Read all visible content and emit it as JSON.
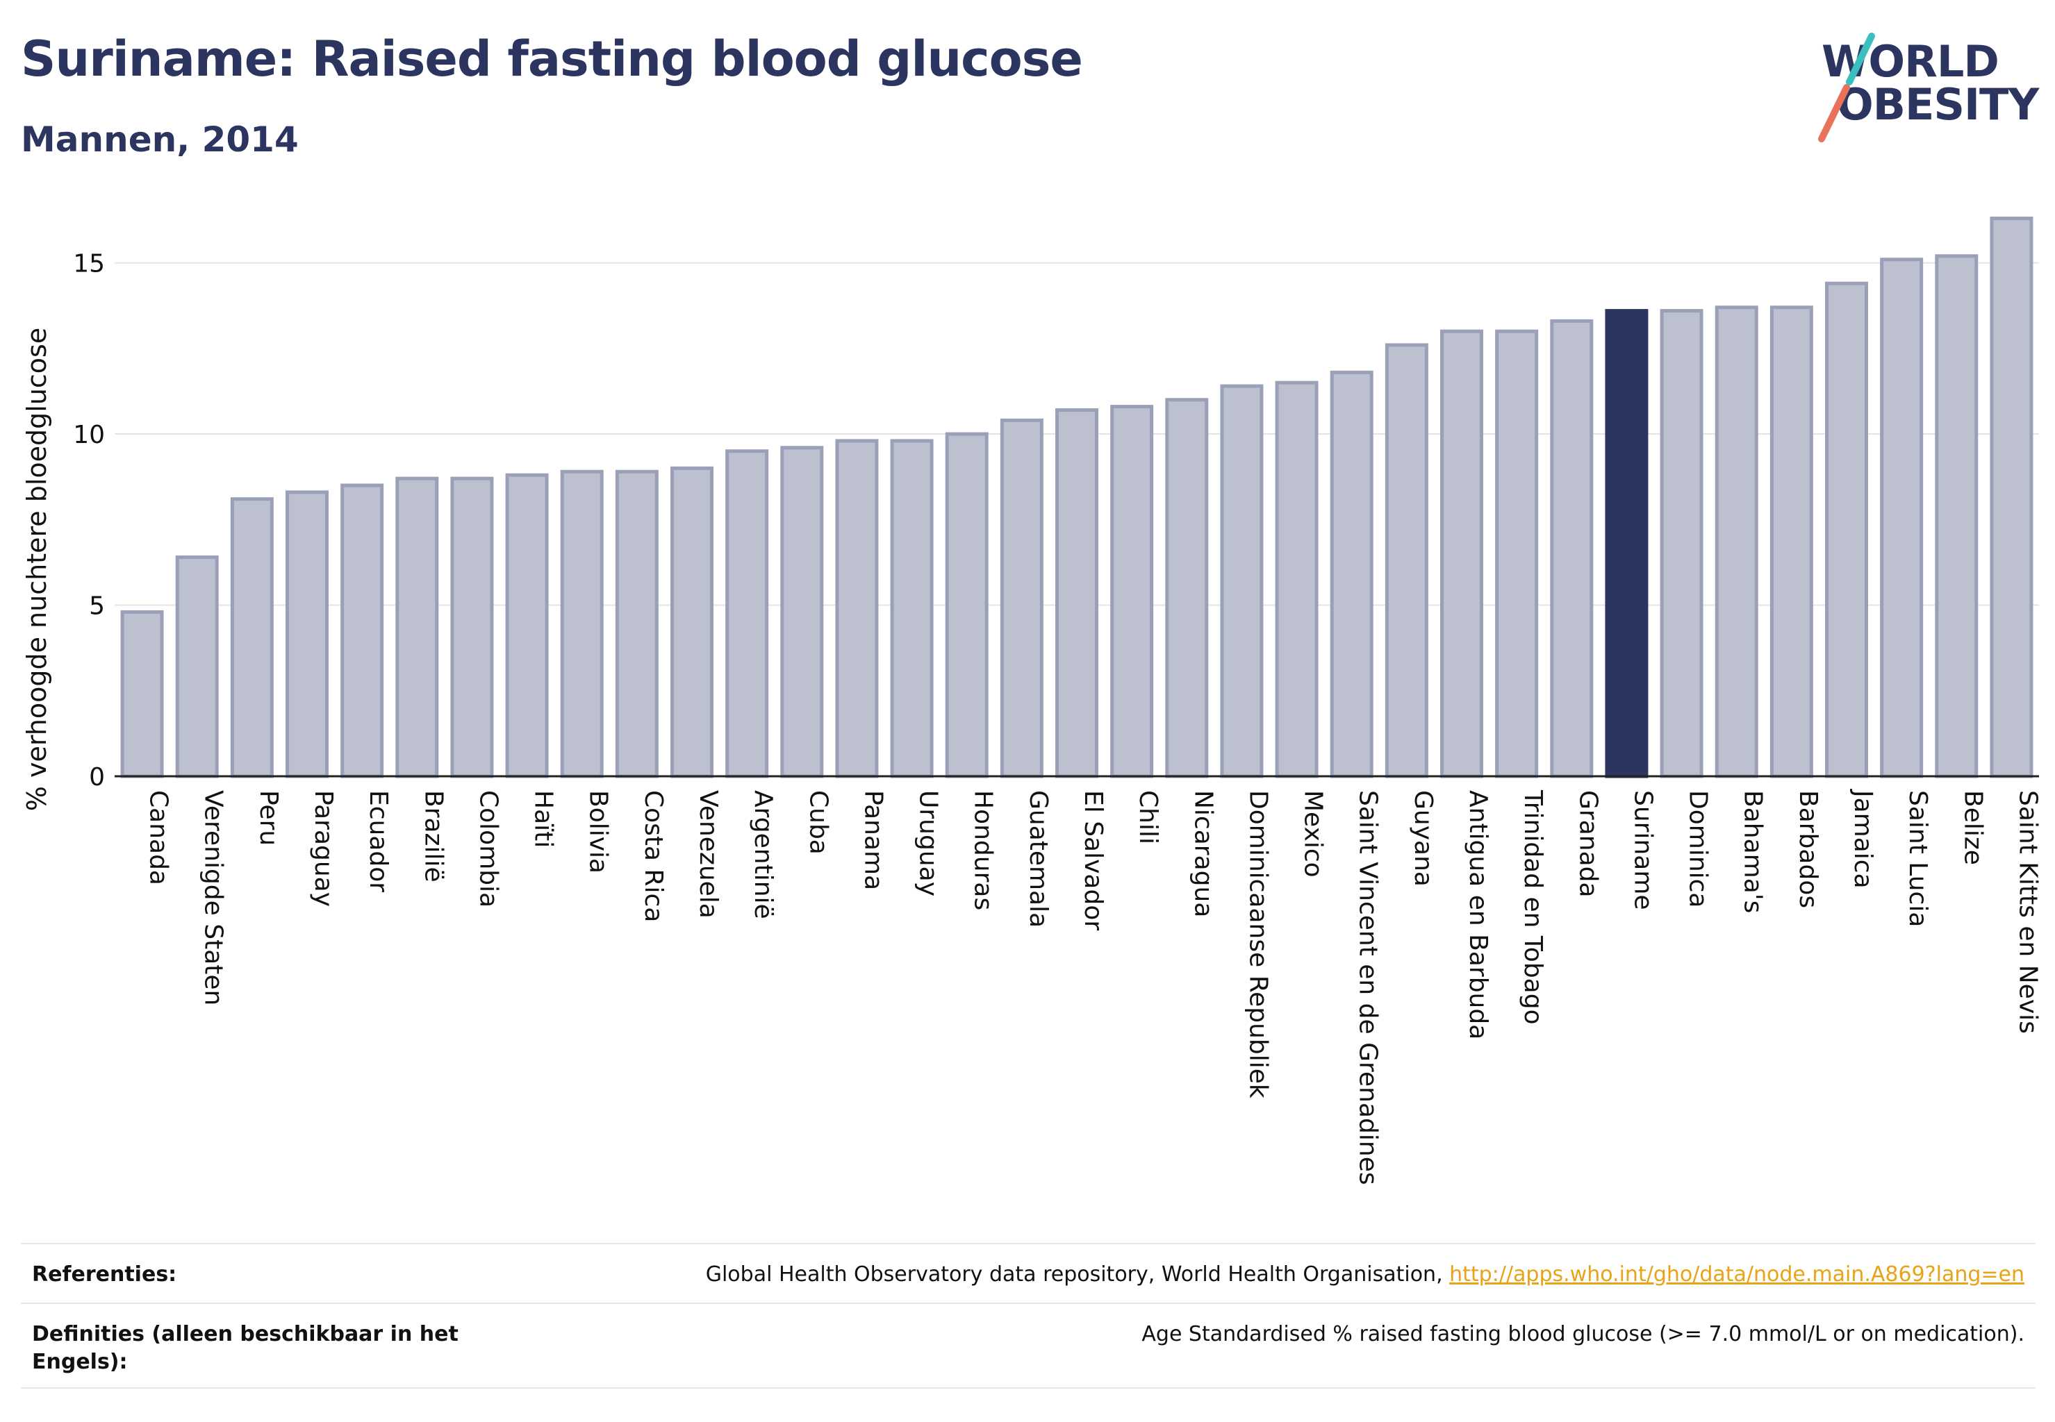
{
  "title": "Suriname: Raised fasting blood glucose",
  "subtitle": "Mannen, 2014",
  "logo": {
    "line1": "WORLD",
    "line2": "OBESITY"
  },
  "colors": {
    "bar": "#bcc0cf",
    "bar_stroke": "#9aa0b8",
    "highlight": "#2b3560",
    "text": "#2b3560",
    "link": "#e8a317"
  },
  "chart_data": {
    "type": "bar",
    "title": "Suriname: Raised fasting blood glucose",
    "subtitle": "Mannen, 2014",
    "xlabel": "",
    "ylabel": "% verhoogde nuchtere bloedglucose",
    "ylim": [
      0,
      17
    ],
    "yticks": [
      0,
      5,
      10,
      15
    ],
    "grid": true,
    "highlight": "Suriname",
    "categories": [
      "Canada",
      "Verenigde Staten",
      "Peru",
      "Paraguay",
      "Ecuador",
      "Brazilië",
      "Colombia",
      "Haïti",
      "Bolivia",
      "Costa Rica",
      "Venezuela",
      "Argentinië",
      "Cuba",
      "Panama",
      "Uruguay",
      "Honduras",
      "Guatemala",
      "El Salvador",
      "Chili",
      "Nicaragua",
      "Dominicaanse Republiek",
      "Mexico",
      "Saint Vincent en de Grenadines",
      "Guyana",
      "Antigua en Barbuda",
      "Trinidad en Tobago",
      "Granada",
      "Suriname",
      "Dominica",
      "Bahama's",
      "Barbados",
      "Jamaica",
      "Saint Lucia",
      "Belize",
      "Saint Kitts en Nevis"
    ],
    "values": [
      4.8,
      6.4,
      8.1,
      8.3,
      8.5,
      8.7,
      8.7,
      8.8,
      8.9,
      8.9,
      9.0,
      9.5,
      9.6,
      9.8,
      9.8,
      10.0,
      10.4,
      10.7,
      10.8,
      11.0,
      11.4,
      11.5,
      11.8,
      12.6,
      13.0,
      13.0,
      13.3,
      13.6,
      13.6,
      13.7,
      13.7,
      14.4,
      15.1,
      15.2,
      16.3
    ]
  },
  "references": {
    "label": "Referenties:",
    "text": "Global Health Observatory data repository, World Health Organisation, ",
    "link": "http://apps.who.int/gho/data/node.main.A869?lang=en"
  },
  "definitions": {
    "label": "Definities (alleen beschikbaar in het Engels):",
    "text": "Age Standardised % raised fasting blood glucose (>= 7.0 mmol/L or on medication)."
  }
}
